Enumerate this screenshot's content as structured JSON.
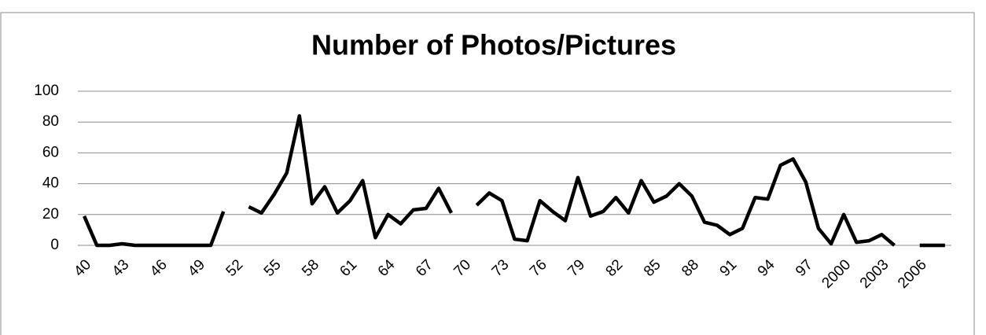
{
  "chart_data": {
    "type": "line",
    "title": "Number of Photos/Pictures",
    "categories": [
      "40",
      null,
      null,
      "43",
      null,
      null,
      "46",
      null,
      null,
      "49",
      null,
      null,
      "52",
      null,
      null,
      "55",
      null,
      null,
      "58",
      null,
      null,
      "61",
      null,
      null,
      "64",
      null,
      null,
      "67",
      null,
      null,
      "70",
      null,
      null,
      "73",
      null,
      null,
      "76",
      null,
      null,
      "79",
      null,
      null,
      "82",
      null,
      null,
      "85",
      null,
      null,
      "88",
      null,
      null,
      "91",
      null,
      null,
      "94",
      null,
      null,
      "97",
      null,
      null,
      "2000",
      null,
      null,
      "2003",
      null,
      null,
      "2006",
      null,
      null
    ],
    "series": [
      {
        "name": "Number of Photos/Pictures",
        "color": "#000000",
        "values": [
          19,
          0,
          0,
          1,
          0,
          0,
          0,
          0,
          0,
          0,
          0,
          22,
          null,
          25,
          21,
          33,
          47,
          84,
          27,
          38,
          21,
          29,
          42,
          5,
          20,
          14,
          23,
          24,
          37,
          21,
          null,
          26,
          34,
          29,
          4,
          3,
          29,
          22,
          16,
          44,
          19,
          22,
          31,
          21,
          42,
          28,
          32,
          40,
          32,
          15,
          13,
          7,
          11,
          31,
          30,
          52,
          56,
          41,
          11,
          1,
          20,
          2,
          3,
          7,
          0,
          null,
          0,
          0,
          0
        ]
      }
    ],
    "ylim": [
      0,
      100
    ],
    "yticks": [
      0,
      20,
      40,
      60,
      80,
      100
    ],
    "grid": true
  }
}
